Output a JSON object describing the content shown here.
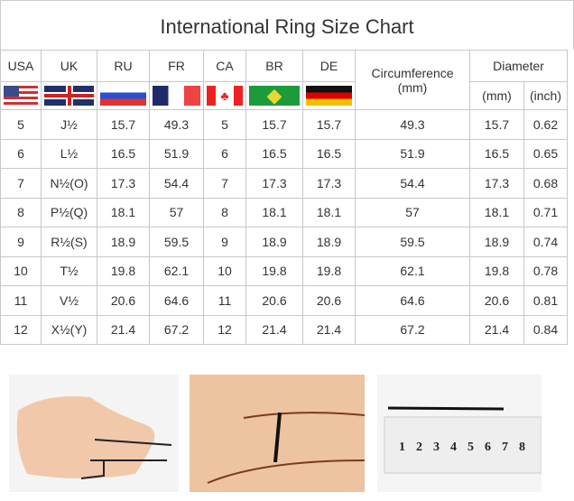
{
  "title": "International Ring Size Chart",
  "headers": {
    "usa": "USA",
    "uk": "UK",
    "ru": "RU",
    "fr": "FR",
    "ca": "CA",
    "br": "BR",
    "de": "DE",
    "circumference": "Circumference",
    "circumference_unit": "(mm)",
    "diameter": "Diameter",
    "diameter_mm": "(mm)",
    "diameter_inch": "(inch)"
  },
  "flags": [
    "us-flag",
    "uk-flag",
    "russia-flag",
    "france-flag",
    "canada-flag",
    "brazil-flag",
    "germany-flag"
  ],
  "rows": [
    [
      "5",
      "J½",
      "15.7",
      "49.3",
      "5",
      "15.7",
      "15.7",
      "49.3",
      "15.7",
      "0.62"
    ],
    [
      "6",
      "L½",
      "16.5",
      "51.9",
      "6",
      "16.5",
      "16.5",
      "51.9",
      "16.5",
      "0.65"
    ],
    [
      "7",
      "N½(O)",
      "17.3",
      "54.4",
      "7",
      "17.3",
      "17.3",
      "54.4",
      "17.3",
      "0.68"
    ],
    [
      "8",
      "P½(Q)",
      "18.1",
      "57",
      "8",
      "18.1",
      "18.1",
      "57",
      "18.1",
      "0.71"
    ],
    [
      "9",
      "R½(S)",
      "18.9",
      "59.5",
      "9",
      "18.9",
      "18.9",
      "59.5",
      "18.9",
      "0.74"
    ],
    [
      "10",
      "T½",
      "19.8",
      "62.1",
      "10",
      "19.8",
      "19.8",
      "62.1",
      "19.8",
      "0.78"
    ],
    [
      "11",
      "V½",
      "20.6",
      "64.6",
      "11",
      "20.6",
      "20.6",
      "64.6",
      "20.6",
      "0.81"
    ],
    [
      "12",
      "X½(Y)",
      "21.4",
      "67.2",
      "12",
      "21.4",
      "21.4",
      "67.2",
      "21.4",
      "0.84"
    ]
  ],
  "ruler_labels": [
    "1",
    "2",
    "3",
    "4",
    "5",
    "6",
    "7",
    "8"
  ]
}
